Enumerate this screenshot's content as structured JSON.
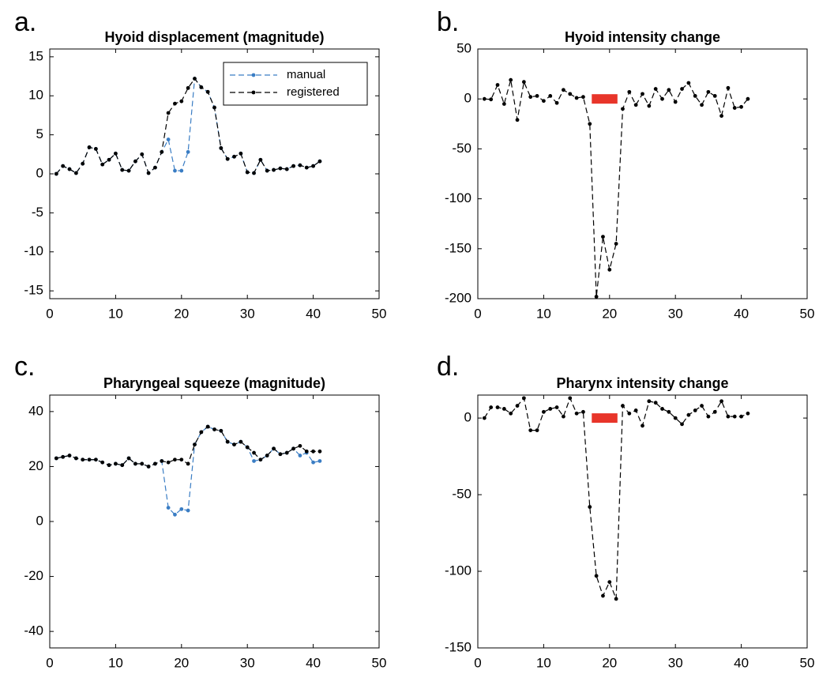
{
  "chart_data": [
    {
      "type": "line",
      "panel_label": "a.",
      "title": "Hyoid displacement (magnitude)",
      "x": [
        1,
        2,
        3,
        4,
        5,
        6,
        7,
        8,
        9,
        10,
        11,
        12,
        13,
        14,
        15,
        16,
        17,
        18,
        19,
        20,
        21,
        22,
        23,
        24,
        25,
        26,
        27,
        28,
        29,
        30,
        31,
        32,
        33,
        34,
        35,
        36,
        37,
        38,
        39,
        40,
        41
      ],
      "series": [
        {
          "name": "manual",
          "color": "#3a7dc4",
          "values": [
            0,
            1,
            0.6,
            0.1,
            1.3,
            3.4,
            3.2,
            1.2,
            1.8,
            2.6,
            0.5,
            0.4,
            1.6,
            2.5,
            0.1,
            0.8,
            2.8,
            4.4,
            0.4,
            0.4,
            2.8,
            12.2,
            11.1,
            10.5,
            8.5,
            3.3,
            1.9,
            2.2,
            2.6,
            0.2,
            0.1,
            1.8,
            0.4,
            0.5,
            0.7,
            0.6,
            1,
            1.1,
            0.8,
            1,
            1.6
          ]
        },
        {
          "name": "registered",
          "color": "#000000",
          "values": [
            0,
            1,
            0.6,
            0.1,
            1.3,
            3.4,
            3.2,
            1.2,
            1.8,
            2.6,
            0.5,
            0.4,
            1.6,
            2.5,
            0.1,
            0.8,
            2.8,
            7.8,
            9,
            9.3,
            11,
            12.2,
            11.1,
            10.5,
            8.5,
            3.3,
            1.9,
            2.2,
            2.6,
            0.2,
            0.1,
            1.8,
            0.4,
            0.5,
            0.7,
            0.6,
            1,
            1.1,
            0.8,
            1,
            1.6
          ]
        }
      ],
      "xlim": [
        0,
        50
      ],
      "xticks": [
        0,
        10,
        20,
        30,
        40,
        50
      ],
      "ylim": [
        -16,
        16
      ],
      "yticks": [
        -15,
        -10,
        -5,
        0,
        5,
        10,
        15
      ],
      "legend": "northeast"
    },
    {
      "type": "line",
      "panel_label": "b.",
      "title": "Hyoid intensity change",
      "x": [
        1,
        2,
        3,
        4,
        5,
        6,
        7,
        8,
        9,
        10,
        11,
        12,
        13,
        14,
        15,
        16,
        17,
        18,
        19,
        20,
        21,
        22,
        23,
        24,
        25,
        26,
        27,
        28,
        29,
        30,
        31,
        32,
        33,
        34,
        35,
        36,
        37,
        38,
        39,
        40,
        41
      ],
      "series": [
        {
          "color": "#000000",
          "values": [
            0,
            -0.5,
            14,
            -5,
            19,
            -21,
            17,
            2,
            3,
            -2,
            3,
            -4,
            9,
            5,
            1,
            2,
            -25,
            -198,
            -138,
            -171,
            -145,
            -10,
            7,
            -6,
            5,
            -7,
            10,
            0,
            9,
            -3,
            10,
            16,
            3,
            -6,
            7,
            3,
            -17,
            11,
            -9,
            -8,
            0
          ]
        }
      ],
      "span": {
        "x": [
          17.3,
          21.2
        ],
        "y": 0,
        "color": "#e8352a"
      },
      "xlim": [
        0,
        50
      ],
      "xticks": [
        0,
        10,
        20,
        30,
        40,
        50
      ],
      "ylim": [
        -200,
        50
      ],
      "yticks": [
        -200,
        -150,
        -100,
        -50,
        0,
        50
      ]
    },
    {
      "type": "line",
      "panel_label": "c.",
      "title": "Pharyngeal squeeze (magnitude)",
      "x": [
        1,
        2,
        3,
        4,
        5,
        6,
        7,
        8,
        9,
        10,
        11,
        12,
        13,
        14,
        15,
        16,
        17,
        18,
        19,
        20,
        21,
        22,
        23,
        24,
        25,
        26,
        27,
        28,
        29,
        30,
        31,
        32,
        33,
        34,
        35,
        36,
        37,
        38,
        39,
        40,
        41
      ],
      "series": [
        {
          "color": "#3a7dc4",
          "values": [
            23,
            23.5,
            24,
            23,
            22.5,
            22.5,
            22.5,
            21.5,
            20.5,
            21,
            20.5,
            23,
            21,
            21,
            20,
            21,
            22,
            5,
            2.5,
            4.5,
            4,
            28,
            32.5,
            34.5,
            33.5,
            33,
            29,
            28,
            29,
            27,
            22,
            22.5,
            24,
            26.5,
            24.5,
            25,
            26.5,
            24,
            25,
            21.5,
            22
          ]
        },
        {
          "color": "#000000",
          "values": [
            23,
            23.5,
            24,
            23,
            22.5,
            22.5,
            22.5,
            21.5,
            20.5,
            21,
            20.5,
            23,
            21,
            21,
            20,
            21,
            22,
            21.5,
            22.5,
            22.5,
            21,
            28,
            32.5,
            34.5,
            33.5,
            33,
            29,
            28,
            29,
            27,
            25,
            22.5,
            24,
            26.5,
            24.5,
            25,
            26.5,
            27.5,
            25.5,
            25.5,
            25.5
          ]
        }
      ],
      "xlim": [
        0,
        50
      ],
      "xticks": [
        0,
        10,
        20,
        30,
        40,
        50
      ],
      "ylim": [
        -46,
        46
      ],
      "yticks": [
        -40,
        -20,
        0,
        20,
        40
      ]
    },
    {
      "type": "line",
      "panel_label": "d.",
      "title": "Pharynx intensity change",
      "x": [
        1,
        2,
        3,
        4,
        5,
        6,
        7,
        8,
        9,
        10,
        11,
        12,
        13,
        14,
        15,
        16,
        17,
        18,
        19,
        20,
        21,
        22,
        23,
        24,
        25,
        26,
        27,
        28,
        29,
        30,
        31,
        32,
        33,
        34,
        35,
        36,
        37,
        38,
        39,
        40,
        41
      ],
      "series": [
        {
          "color": "#000000",
          "values": [
            0,
            7,
            7,
            6,
            3,
            8,
            13,
            -8,
            -8,
            4,
            6,
            7,
            1,
            13,
            3,
            4,
            -58,
            -103,
            -116,
            -107,
            -118,
            8,
            3,
            5,
            -5,
            11,
            10,
            6,
            4,
            0,
            -4,
            2,
            5,
            8,
            1,
            4,
            11,
            1,
            1,
            1,
            3
          ]
        }
      ],
      "span": {
        "x": [
          17.3,
          21.2
        ],
        "y": 0,
        "color": "#e8352a"
      },
      "xlim": [
        0,
        50
      ],
      "xticks": [
        0,
        10,
        20,
        30,
        40,
        50
      ],
      "ylim": [
        -150,
        15
      ],
      "yticks": [
        -150,
        -100,
        -50,
        0
      ]
    }
  ]
}
